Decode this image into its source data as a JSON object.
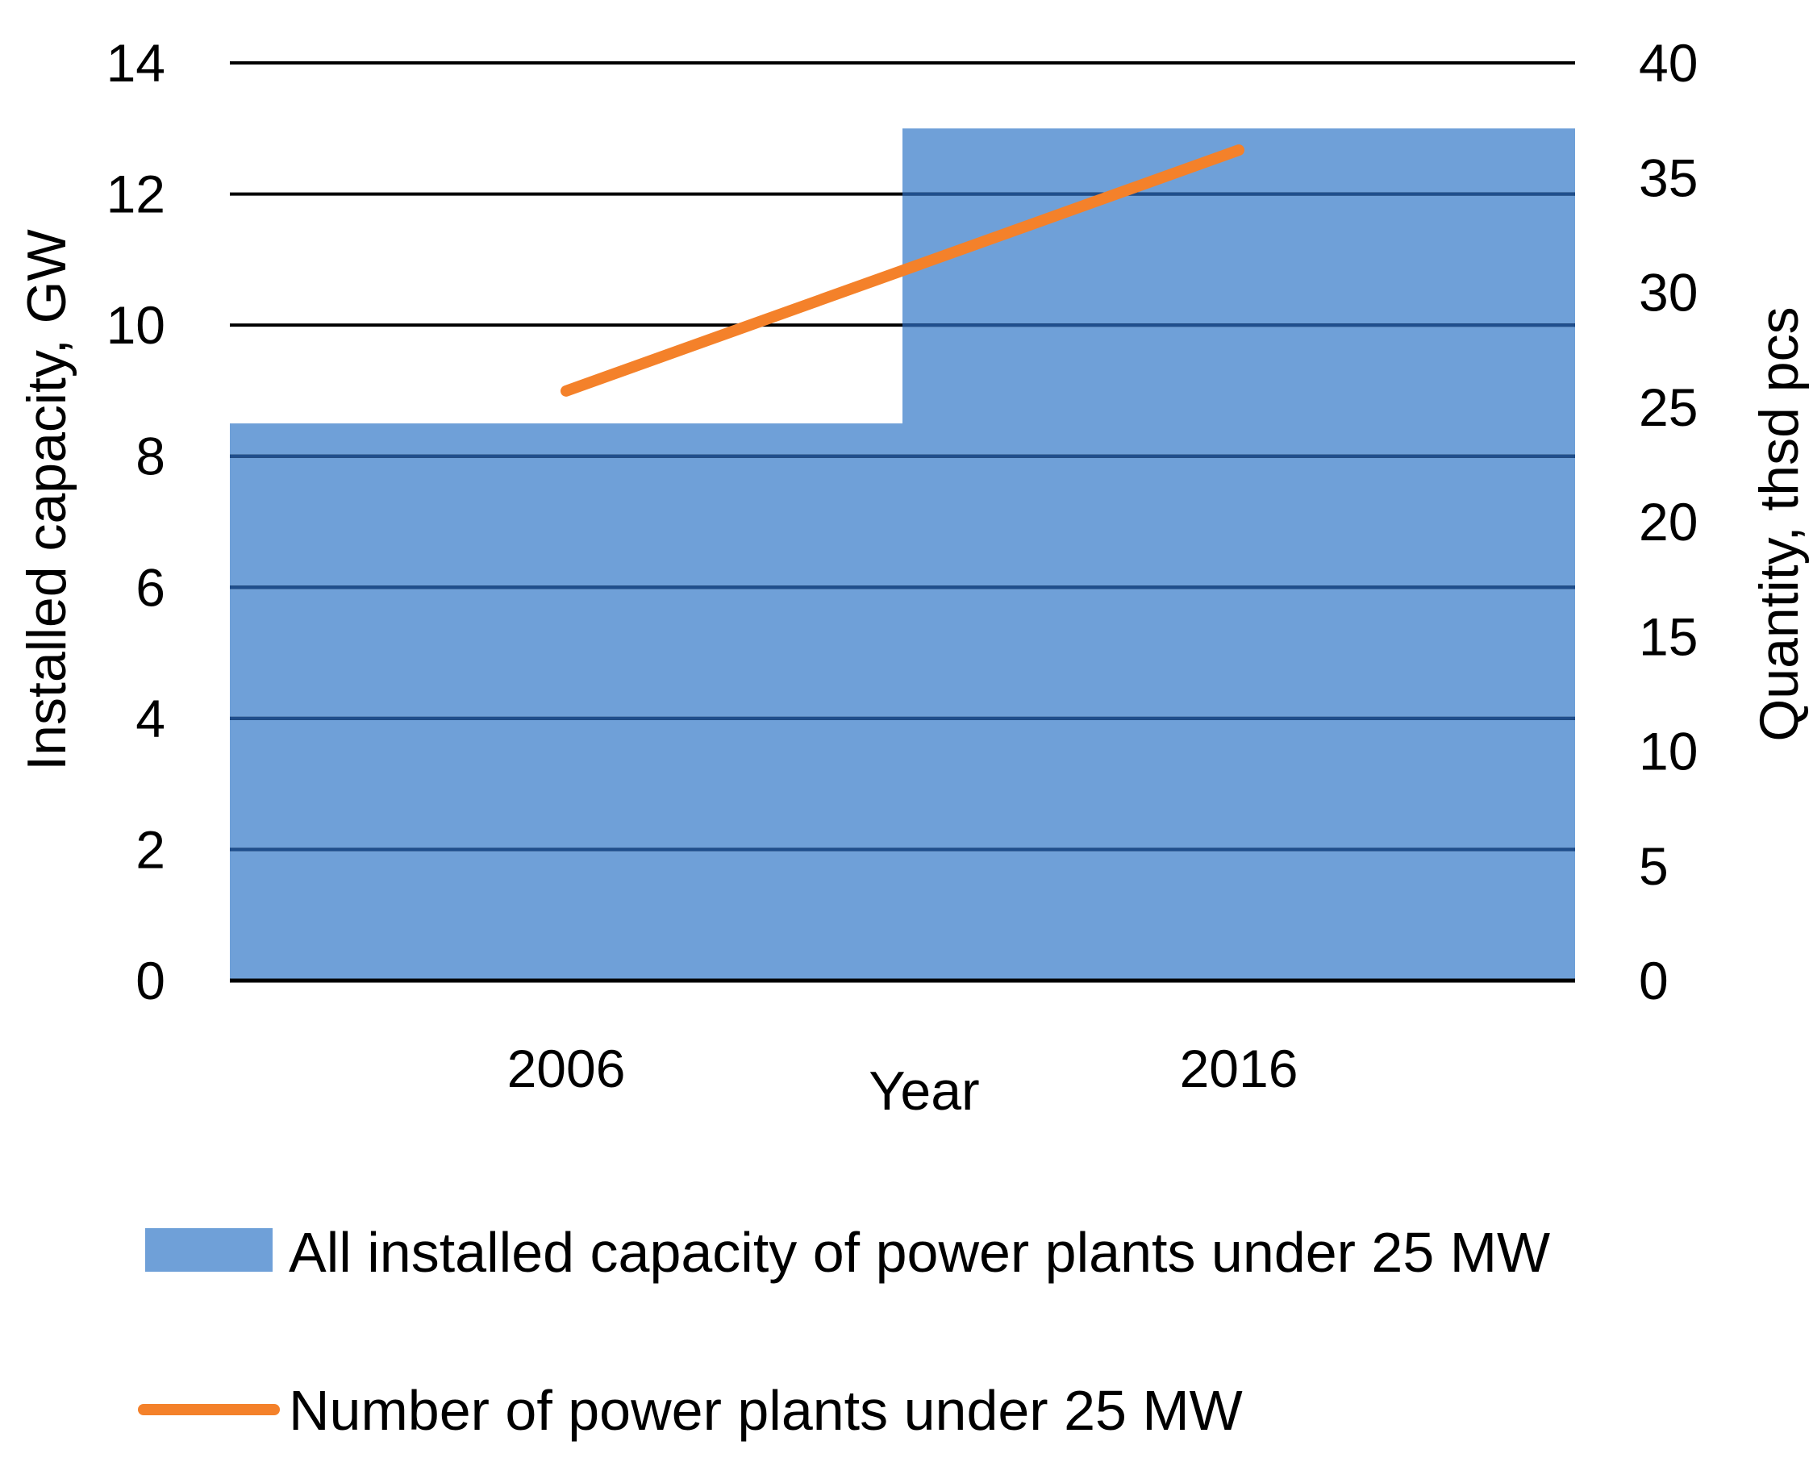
{
  "chart_data": {
    "type": "bar+line",
    "categories": [
      "2006",
      "2016"
    ],
    "xlabel": "Year",
    "ylabel_left": "Installed capacity, GW",
    "ylabel_right": "Quantity, thsd pcs",
    "ylim_left": [
      0,
      14
    ],
    "yticks_left": [
      0,
      2,
      4,
      6,
      8,
      10,
      12,
      14
    ],
    "ylim_right": [
      0,
      40
    ],
    "yticks_right": [
      0,
      5,
      10,
      15,
      20,
      25,
      30,
      35,
      40
    ],
    "grid": true,
    "legend_position": "bottom",
    "series": [
      {
        "name": "All installed capacity of power plants under 25 MW",
        "type": "bar",
        "axis": "left",
        "values": [
          8.5,
          13.0
        ],
        "color": "#6fa0d8"
      },
      {
        "name": "Number of power plants under 25 MW",
        "type": "line",
        "axis": "right",
        "values": [
          25.7,
          36.2
        ],
        "color": "#f4812a"
      }
    ],
    "colors": {
      "bar": "#6fa0d8",
      "line": "#f4812a",
      "gridline": "#000000",
      "gridline_over_bar": "#1f4e8c"
    }
  }
}
